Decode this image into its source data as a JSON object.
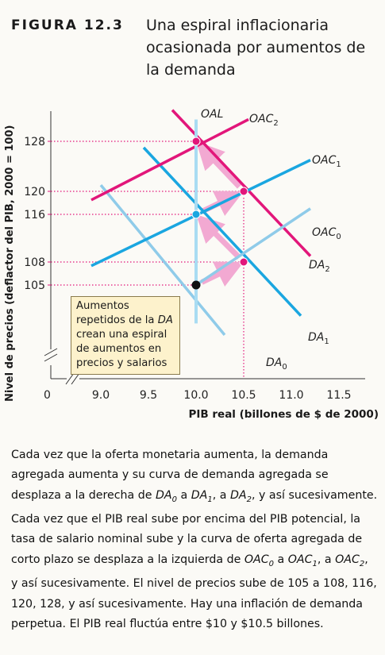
{
  "figure": {
    "label": "FIGURA 12.3",
    "title": "Una espiral inflacionaria ocasionada por aumentos de la demanda"
  },
  "annotation": {
    "pre": "Aumentos repetidos de la ",
    "italic": "DA",
    "post": " crean una espiral de aumentos en precios y salarios"
  },
  "caption": {
    "parts": [
      {
        "t": "Cada vez que la oferta monetaria aumenta, la demanda agregada aumenta y su curva de demanda agregada se desplaza a la derecha de "
      },
      {
        "i": "DA",
        "sub": "0"
      },
      {
        "t": " a "
      },
      {
        "i": "DA",
        "sub": "1"
      },
      {
        "t": ", a "
      },
      {
        "i": "DA",
        "sub": "2"
      },
      {
        "t": ", y así sucesivamente. Cada vez que el PIB real sube por encima del PIB potencial, la tasa de salario nominal sube y la curva de oferta agregada de corto plazo se desplaza a la izquierda de "
      },
      {
        "i": "OAC",
        "sub": "0"
      },
      {
        "t": " a "
      },
      {
        "i": "OAC",
        "sub": "1"
      },
      {
        "t": ", a "
      },
      {
        "i": "OAC",
        "sub": "2"
      },
      {
        "t": ", y así sucesivamente. El nivel de precios sube de 105 a 108, 116, 120, 128, y así sucesivamente. Hay una inflación de demanda perpetua. El PIB real fluctúa entre $10 y $10.5 billones."
      }
    ]
  },
  "colors": {
    "da0": "#8fcbe9",
    "da1": "#1aa6e0",
    "da2": "#e2167a",
    "oal": "#a9dcf2",
    "arrows": "#f2a9d2",
    "dotted": "#e2167a"
  },
  "chart_data": {
    "type": "line",
    "xlabel": "PIB real (billones de $ de 2000)",
    "ylabel": "Nivel de precios (deflactor del PIB, 2000 = 100)",
    "x_origin_label": "0",
    "x_ticks": [
      "9.0",
      "9.5",
      "10.0",
      "10.5",
      "11.0",
      "11.5"
    ],
    "y_ticks": [
      105,
      108,
      116,
      120,
      128
    ],
    "xlim": [
      8.6,
      11.8
    ],
    "axis_breaks": true,
    "series": [
      {
        "name": "DA",
        "sub": "0",
        "color_key": "da0",
        "x": [
          9.0,
          10.3
        ],
        "y": [
          121,
          98.5
        ]
      },
      {
        "name": "DA",
        "sub": "1",
        "color_key": "da1",
        "x": [
          9.45,
          11.1
        ],
        "y": [
          127,
          101
        ]
      },
      {
        "name": "DA",
        "sub": "2",
        "color_key": "da2",
        "x": [
          9.75,
          11.2
        ],
        "y": [
          133,
          109
        ]
      },
      {
        "name": "OAC",
        "sub": "0",
        "color_key": "da0",
        "x": [
          10.0,
          11.2
        ],
        "y": [
          105,
          117
        ]
      },
      {
        "name": "OAC",
        "sub": "1",
        "color_key": "da1",
        "x": [
          8.9,
          11.2
        ],
        "y": [
          107.5,
          125
        ]
      },
      {
        "name": "OAC",
        "sub": "2",
        "color_key": "da2",
        "x": [
          8.9,
          10.55
        ],
        "y": [
          118.5,
          131.5
        ]
      },
      {
        "name": "OAL",
        "sub": "",
        "color_key": "oal",
        "x": [
          10.0,
          10.0
        ],
        "y": [
          100,
          131.5
        ]
      }
    ],
    "equilibria": [
      {
        "x": 10.0,
        "y": 105,
        "color": "#111111"
      },
      {
        "x": 10.5,
        "y": 108,
        "color": "#e2167a"
      },
      {
        "x": 10.0,
        "y": 116,
        "color": "#1aa6e0"
      },
      {
        "x": 10.5,
        "y": 120,
        "color": "#e2167a"
      },
      {
        "x": 10.0,
        "y": 128,
        "color": "#e2167a"
      }
    ],
    "path": [
      [
        10.0,
        105
      ],
      [
        10.5,
        108
      ],
      [
        10.0,
        116
      ],
      [
        10.5,
        120
      ],
      [
        10.0,
        128
      ]
    ]
  }
}
